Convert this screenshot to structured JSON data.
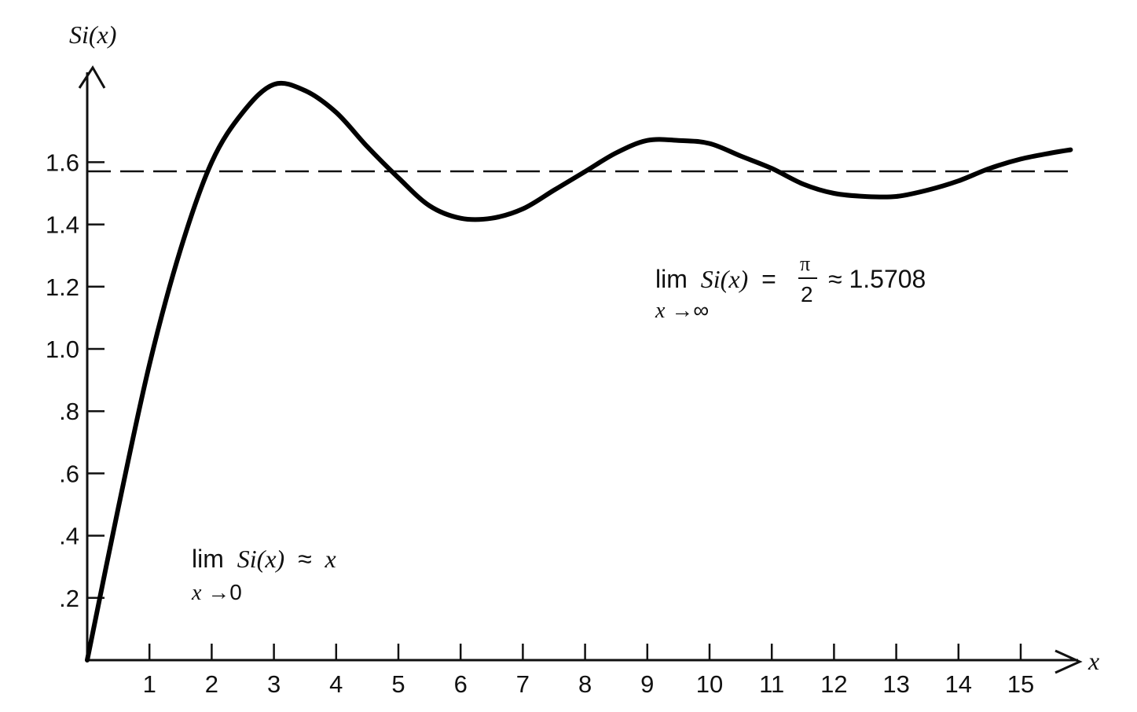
{
  "chart_data": {
    "type": "line",
    "title": "",
    "ylabel": "Si(x)",
    "xlabel": "x",
    "xlim": [
      0,
      15.8
    ],
    "ylim": [
      0,
      1.85
    ],
    "x_ticks": [
      1,
      2,
      3,
      4,
      5,
      6,
      7,
      8,
      9,
      10,
      11,
      12,
      13,
      14,
      15
    ],
    "x_tick_labels": [
      "1",
      "2",
      "3",
      "4",
      "5",
      "6",
      "7",
      "8",
      "9",
      "10",
      "11",
      "12",
      "13",
      "14",
      "15"
    ],
    "y_ticks": [
      0.2,
      0.4,
      0.6,
      0.8,
      1.0,
      1.2,
      1.4,
      1.6
    ],
    "y_tick_labels": [
      ".2",
      ".4",
      ".6",
      ".8",
      "1.0",
      "1.2",
      "1.4",
      "1.6"
    ],
    "grid": false,
    "series": [
      {
        "function": "Si(x)",
        "x": [
          0,
          0.5,
          1,
          1.5,
          2,
          2.5,
          3,
          3.5,
          4,
          4.5,
          5,
          5.5,
          6,
          6.5,
          7,
          7.5,
          8,
          8.5,
          9,
          9.5,
          10,
          10.5,
          11,
          11.5,
          12,
          12.5,
          13,
          13.5,
          14,
          14.5,
          15,
          15.5,
          15.8
        ],
        "y": [
          0,
          0.49,
          0.95,
          1.32,
          1.6,
          1.76,
          1.85,
          1.83,
          1.76,
          1.65,
          1.55,
          1.46,
          1.42,
          1.42,
          1.45,
          1.51,
          1.57,
          1.63,
          1.67,
          1.67,
          1.66,
          1.62,
          1.58,
          1.53,
          1.5,
          1.49,
          1.49,
          1.51,
          1.54,
          1.58,
          1.61,
          1.63,
          1.64
        ],
        "style": "solid-thick",
        "color": "#000000"
      }
    ],
    "reference_lines": [
      {
        "orientation": "horizontal",
        "y": 1.5708,
        "style": "dashed"
      }
    ],
    "annotations": {
      "upper": {
        "lim": "lim",
        "func": "Si(x)",
        "eq": "=",
        "pi": "π",
        "two": "2",
        "approx": "≈ 1.5708",
        "sub_var": "x",
        "sub_rest": "→∞"
      },
      "lower": {
        "lim": "lim",
        "func": "Si(x)",
        "approx": "≈",
        "var": "x",
        "sub_var": "x",
        "sub_rest": "→0"
      }
    }
  }
}
